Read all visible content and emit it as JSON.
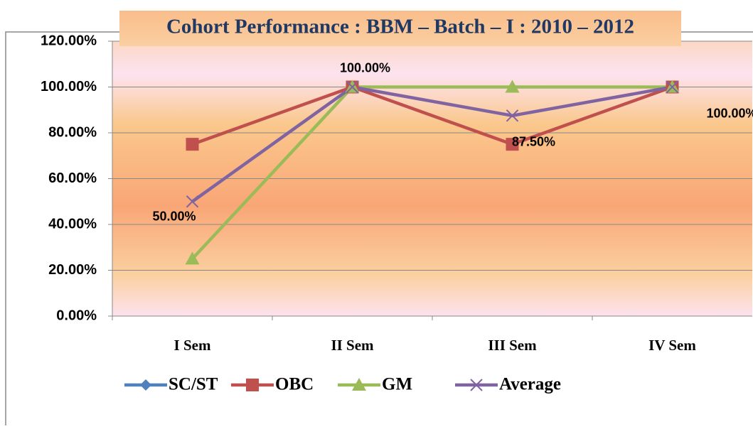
{
  "chart_data": {
    "type": "line",
    "title": "Cohort Performance : BBM – Batch – I  : 2010 – 2012",
    "categories": [
      "I Sem",
      "II Sem",
      "III Sem",
      "IV Sem"
    ],
    "series": [
      {
        "name": "SC/ST",
        "color": "#4f81bd",
        "values": [
          null,
          null,
          null,
          null
        ]
      },
      {
        "name": "OBC",
        "color": "#c0504d",
        "values": [
          75,
          100,
          75,
          100
        ]
      },
      {
        "name": "GM",
        "color": "#9bbb59",
        "values": [
          25,
          100,
          100,
          100
        ]
      },
      {
        "name": "Average",
        "color": "#8064a2",
        "values": [
          50,
          100,
          87.5,
          100
        ],
        "value_labels": [
          "50.00%",
          "100.00%",
          "87.50%",
          "100.00%"
        ]
      }
    ],
    "ylim": [
      0,
      120
    ],
    "yticks": [
      {
        "value": 0,
        "label": "0.00%"
      },
      {
        "value": 20,
        "label": "20.00%"
      },
      {
        "value": 40,
        "label": "40.00%"
      },
      {
        "value": 60,
        "label": "60.00%"
      },
      {
        "value": 80,
        "label": "80.00%"
      },
      {
        "value": 100,
        "label": "100.00%"
      },
      {
        "value": 120,
        "label": "120.00%"
      }
    ],
    "grid": true,
    "legend": "bottom"
  }
}
